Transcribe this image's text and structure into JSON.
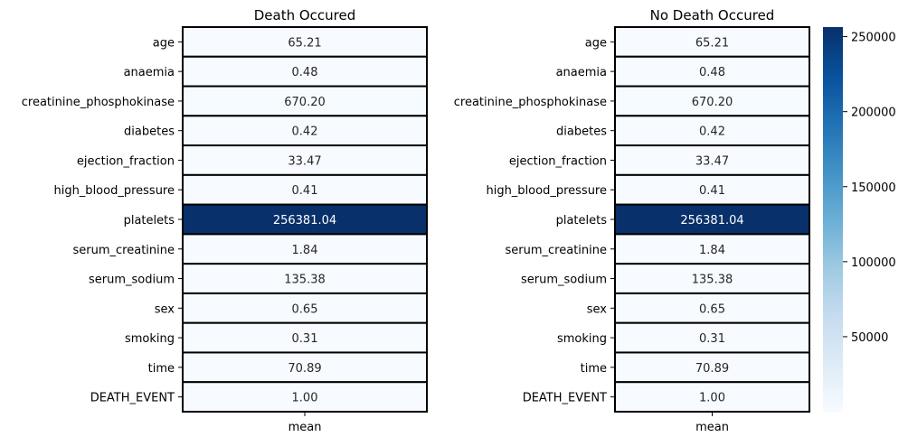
{
  "chart_data": [
    {
      "type": "heatmap",
      "title": "Death Occured",
      "xlabel": "",
      "ylabel": "",
      "columns": [
        "mean"
      ],
      "rows": [
        "age",
        "anaemia",
        "creatinine_phosphokinase",
        "diabetes",
        "ejection_fraction",
        "high_blood_pressure",
        "platelets",
        "serum_creatinine",
        "serum_sodium",
        "sex",
        "smoking",
        "time",
        "DEATH_EVENT"
      ],
      "values": [
        65.21,
        0.48,
        670.2,
        0.42,
        33.47,
        0.41,
        256381.04,
        1.84,
        135.38,
        0.65,
        0.31,
        70.89,
        1.0
      ],
      "labels": [
        "65.21",
        "0.48",
        "670.20",
        "0.42",
        "33.47",
        "0.41",
        "256381.04",
        "1.84",
        "135.38",
        "0.65",
        "0.31",
        "70.89",
        "1.00"
      ],
      "colormap": "Blues",
      "cell_border_color": "#000000"
    },
    {
      "type": "heatmap",
      "title": "No Death Occured",
      "xlabel": "",
      "ylabel": "",
      "columns": [
        "mean"
      ],
      "rows": [
        "age",
        "anaemia",
        "creatinine_phosphokinase",
        "diabetes",
        "ejection_fraction",
        "high_blood_pressure",
        "platelets",
        "serum_creatinine",
        "serum_sodium",
        "sex",
        "smoking",
        "time",
        "DEATH_EVENT"
      ],
      "values": [
        65.21,
        0.48,
        670.2,
        0.42,
        33.47,
        0.41,
        256381.04,
        1.84,
        135.38,
        0.65,
        0.31,
        70.89,
        1.0
      ],
      "labels": [
        "65.21",
        "0.48",
        "670.20",
        "0.42",
        "33.47",
        "0.41",
        "256381.04",
        "1.84",
        "135.38",
        "0.65",
        "0.31",
        "70.89",
        "1.00"
      ],
      "colormap": "Blues",
      "cell_border_color": "#000000"
    }
  ],
  "colorbar": {
    "range": [
      0.31,
      256381.04
    ],
    "ticks": [
      50000,
      100000,
      150000,
      200000,
      250000
    ],
    "tick_labels": [
      "50000",
      "100000",
      "150000",
      "200000",
      "250000"
    ],
    "colors": [
      "#f7fbff",
      "#deebf7",
      "#c6dbef",
      "#9ecae1",
      "#6baed6",
      "#4292c6",
      "#2171b5",
      "#08519c",
      "#08306b"
    ]
  }
}
